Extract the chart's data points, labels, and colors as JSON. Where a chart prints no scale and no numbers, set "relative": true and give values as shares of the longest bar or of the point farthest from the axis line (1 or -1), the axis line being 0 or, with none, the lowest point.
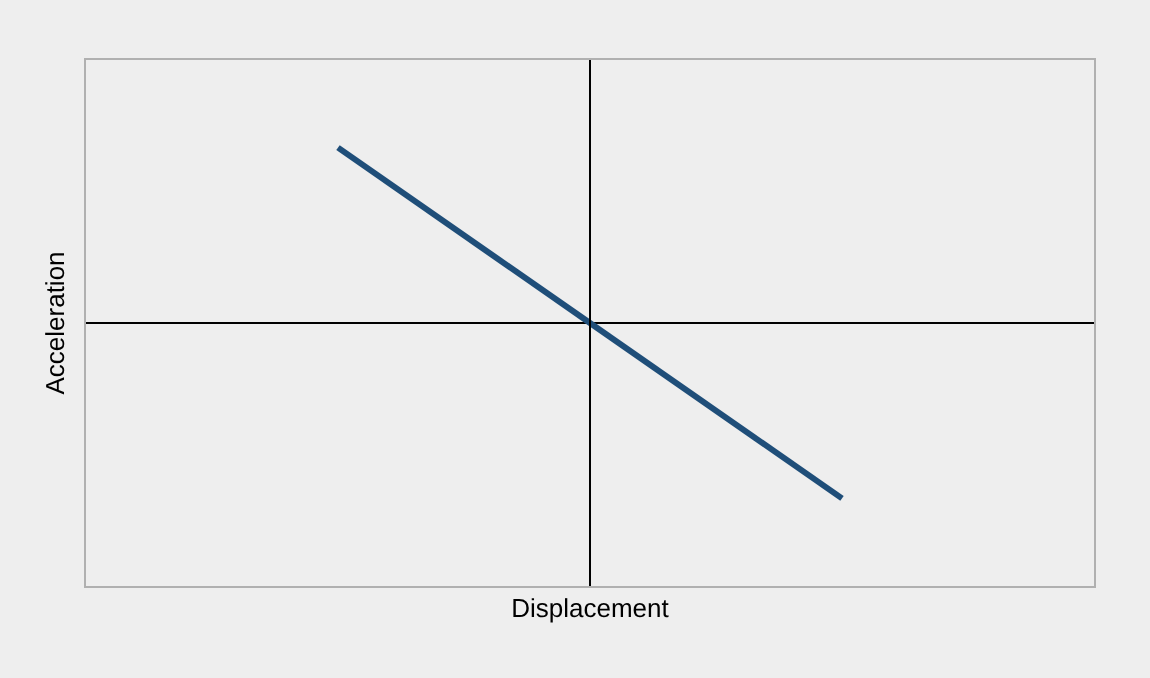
{
  "chart_data": {
    "type": "line",
    "relative": true,
    "xlabel": "Displacement",
    "ylabel": "Acceleration",
    "categories": [
      null,
      null,
      null
    ],
    "series": [
      {
        "color": "#1f4e79",
        "values": [
          1,
          0,
          -1
        ]
      }
    ],
    "marker": "none",
    "line_style": "solid"
  }
}
